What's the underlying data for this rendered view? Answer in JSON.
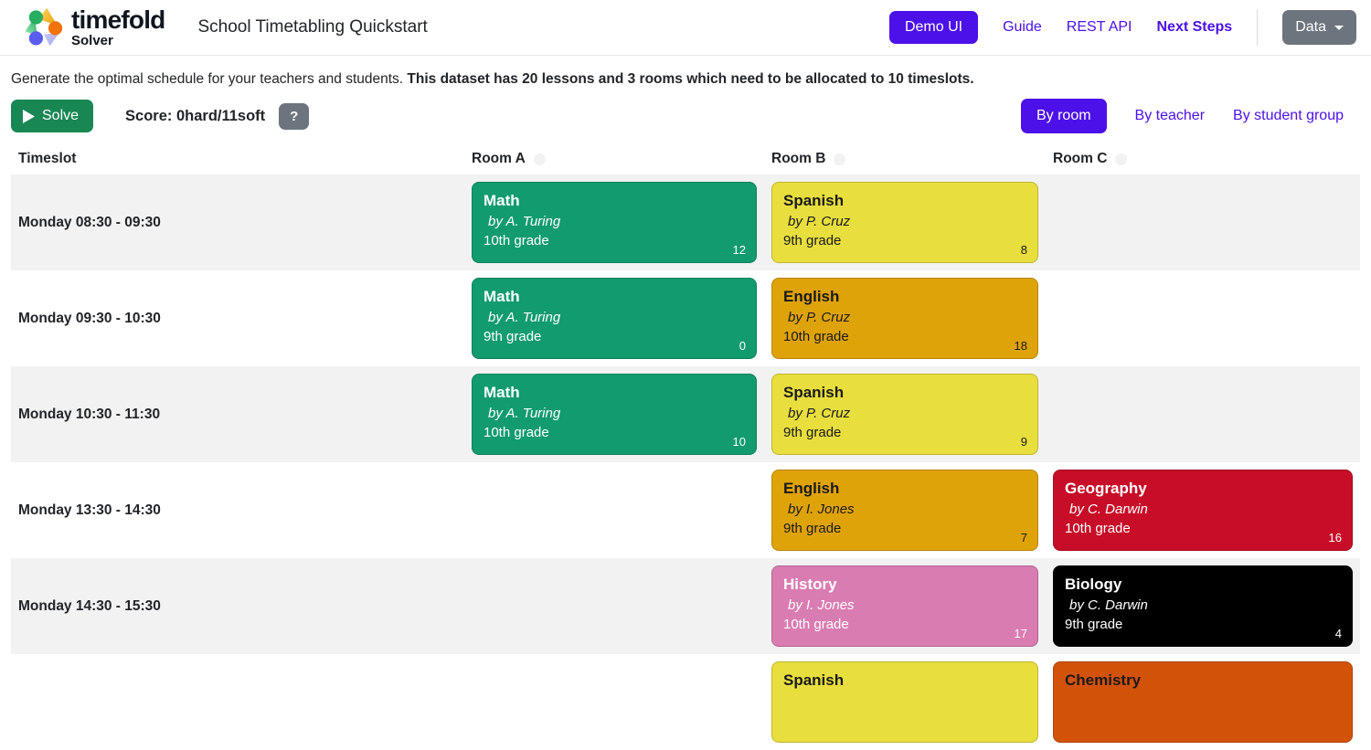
{
  "header": {
    "brand": {
      "name": "timefold",
      "sub": "Solver"
    },
    "title": "School Timetabling Quickstart",
    "nav": [
      {
        "label": "Demo UI",
        "active": true
      },
      {
        "label": "Guide"
      },
      {
        "label": "REST API"
      },
      {
        "label": "Next Steps",
        "bold": true
      }
    ],
    "data_button_label": "Data"
  },
  "intro": {
    "normal": "Generate the optimal schedule for your teachers and students. ",
    "bold": "This dataset has 20 lessons and 3 rooms which need to be allocated to 10 timeslots."
  },
  "toolbar": {
    "solve_label": "Solve",
    "score_label": "Score: 0hard/11soft",
    "help_label": "?"
  },
  "view_tabs": [
    {
      "label": "By room",
      "active": true
    },
    {
      "label": "By teacher"
    },
    {
      "label": "By student group"
    }
  ],
  "card_colors": {
    "green": {
      "bg": "#119b6e",
      "text": "#ffffff"
    },
    "yellow": {
      "bg": "#e8de3e",
      "text": "#1a1a1a"
    },
    "orange": {
      "bg": "#dfa30a",
      "text": "#1a1a1a"
    },
    "red": {
      "bg": "#c70d28",
      "text": "#ffffff"
    },
    "pink": {
      "bg": "#d97cb2",
      "text": "#ffffff"
    },
    "black": {
      "bg": "#000000",
      "text": "#ffffff"
    },
    "darkorange": {
      "bg": "#d3520a",
      "text": "#1a1a1a"
    }
  },
  "accent_colors": {
    "purple": "#4c11e8",
    "solve_green": "#198754",
    "secondary_gray": "#6c757d",
    "row_stripe": "#f2f2f2"
  },
  "table": {
    "columns": [
      "Timeslot",
      "Room A",
      "Room B",
      "Room C"
    ],
    "rows": [
      {
        "timeslot": "Monday 08:30 - 09:30",
        "cells": [
          {
            "subject": "Math",
            "teacher": "by A. Turing",
            "grade": "10th grade",
            "count": "12",
            "color": "green"
          },
          {
            "subject": "Spanish",
            "teacher": "by P. Cruz",
            "grade": "9th grade",
            "count": "8",
            "color": "yellow"
          },
          null
        ]
      },
      {
        "timeslot": "Monday 09:30 - 10:30",
        "cells": [
          {
            "subject": "Math",
            "teacher": "by A. Turing",
            "grade": "9th grade",
            "count": "0",
            "color": "green"
          },
          {
            "subject": "English",
            "teacher": "by P. Cruz",
            "grade": "10th grade",
            "count": "18",
            "color": "orange"
          },
          null
        ]
      },
      {
        "timeslot": "Monday 10:30 - 11:30",
        "cells": [
          {
            "subject": "Math",
            "teacher": "by A. Turing",
            "grade": "10th grade",
            "count": "10",
            "color": "green"
          },
          {
            "subject": "Spanish",
            "teacher": "by P. Cruz",
            "grade": "9th grade",
            "count": "9",
            "color": "yellow"
          },
          null
        ]
      },
      {
        "timeslot": "Monday 13:30 - 14:30",
        "cells": [
          null,
          {
            "subject": "English",
            "teacher": "by I. Jones",
            "grade": "9th grade",
            "count": "7",
            "color": "orange"
          },
          {
            "subject": "Geography",
            "teacher": "by C. Darwin",
            "grade": "10th grade",
            "count": "16",
            "color": "red"
          }
        ]
      },
      {
        "timeslot": "Monday 14:30 - 15:30",
        "cells": [
          null,
          {
            "subject": "History",
            "teacher": "by I. Jones",
            "grade": "10th grade",
            "count": "17",
            "color": "pink"
          },
          {
            "subject": "Biology",
            "teacher": "by C. Darwin",
            "grade": "9th grade",
            "count": "4",
            "color": "black"
          }
        ]
      },
      {
        "timeslot": "",
        "cells": [
          null,
          {
            "subject": "Spanish",
            "color": "yellow",
            "partial": true
          },
          {
            "subject": "Chemistry",
            "color": "darkorange",
            "partial": true
          }
        ]
      }
    ]
  }
}
